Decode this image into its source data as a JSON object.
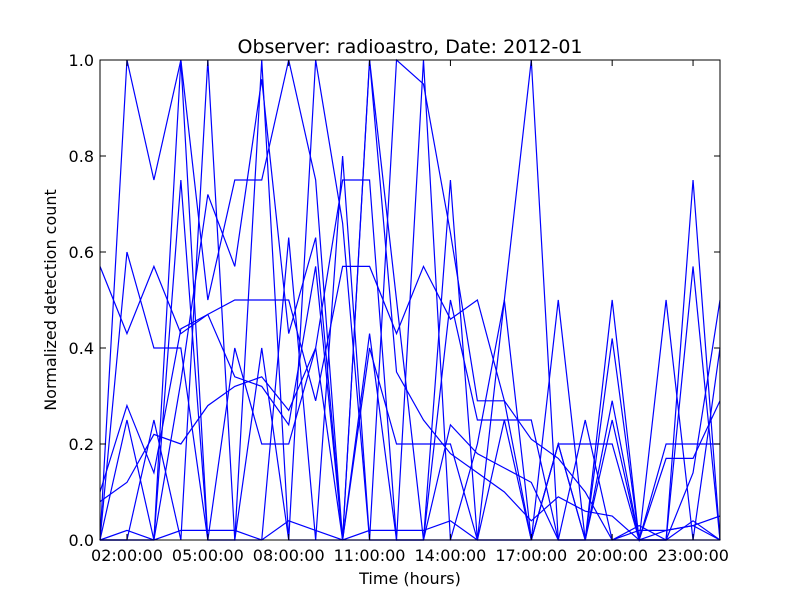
{
  "chart_data": {
    "type": "line",
    "title": "Observer: radioastro, Date: 2012-01",
    "xlabel": "Time (hours)",
    "ylabel": "Normalized detection count",
    "xlim": [
      1,
      24
    ],
    "ylim": [
      0,
      1
    ],
    "xtick_values": [
      2,
      5,
      8,
      11,
      14,
      17,
      20,
      23
    ],
    "xtick_labels": [
      "02:00:00",
      "05:00:00",
      "08:00:00",
      "11:00:00",
      "14:00:00",
      "17:00:00",
      "20:00:00",
      "23:00:00"
    ],
    "ytick_values": [
      0,
      0.2,
      0.4,
      0.6,
      0.8,
      1.0
    ],
    "ytick_labels": [
      "0.0",
      "0.2",
      "0.4",
      "0.6",
      "0.8",
      "1.0"
    ],
    "grid": false,
    "legend": "none",
    "line_color": "#0000ff",
    "x": [
      1,
      2,
      3,
      4,
      5,
      6,
      7,
      8,
      9,
      10,
      11,
      12,
      13,
      14,
      15,
      16,
      17,
      18,
      19,
      20,
      21,
      22,
      23,
      24
    ],
    "series": [
      {
        "values": [
          0.57,
          0.43,
          0.57,
          0.43,
          0.47,
          0.5,
          0.5,
          0.5,
          0.29,
          0.57,
          0.57,
          0.43,
          0.57,
          0.46,
          0.5,
          0.29,
          0.21,
          0.17,
          0.1,
          0.0,
          0.0,
          0.0,
          0.0,
          0.0
        ]
      },
      {
        "values": [
          0.0,
          0.6,
          0.4,
          0.4,
          0.0,
          0.4,
          0.2,
          0.2,
          0.4,
          0.0,
          0.4,
          0.2,
          0.2,
          0.2,
          0.0,
          0.0,
          0.0,
          0.2,
          0.2,
          0.2,
          0.0,
          0.2,
          0.2,
          0.2
        ]
      },
      {
        "values": [
          0.0,
          1.0,
          0.75,
          1.0,
          0.5,
          0.75,
          0.75,
          1.0,
          0.75,
          0.0,
          1.0,
          0.5,
          0.0,
          0.5,
          0.25,
          0.25,
          0.25,
          0.0,
          0.25,
          0.0,
          0.0,
          0.0,
          0.75,
          0.0
        ]
      },
      {
        "values": [
          0.0,
          0.02,
          0.0,
          0.02,
          0.02,
          0.02,
          0.0,
          0.04,
          0.02,
          0.0,
          0.02,
          0.02,
          0.02,
          0.04,
          0.0,
          0.0,
          0.0,
          0.0,
          0.0,
          0.0,
          0.02,
          0.02,
          0.03,
          0.05
        ]
      },
      {
        "values": [
          0.1,
          0.28,
          0.14,
          0.44,
          0.47,
          0.34,
          0.32,
          0.24,
          0.57,
          0.0,
          1.0,
          0.35,
          0.25,
          0.18,
          0.14,
          0.1,
          0.04,
          0.09,
          0.06,
          0.05,
          0.0,
          0.02,
          0.03,
          0.0
        ]
      },
      {
        "values": [
          0.08,
          0.12,
          0.22,
          0.2,
          0.28,
          0.32,
          0.34,
          0.27,
          0.4,
          0.75,
          0.75,
          0.0,
          0.0,
          0.24,
          0.18,
          0.15,
          0.12,
          0.0,
          0.0,
          0.0,
          0.03,
          0.0,
          0.04,
          0.0
        ]
      },
      {
        "values": [
          0.0,
          0.25,
          0.0,
          0.33,
          0.72,
          0.57,
          0.96,
          0.43,
          0.63,
          0.0,
          0.43,
          0.0,
          0.0,
          0.0,
          0.2,
          0.5,
          0.0,
          0.2,
          0.0,
          0.29,
          0.0,
          0.0,
          0.57,
          0.0
        ]
      },
      {
        "values": [
          0.0,
          0.0,
          0.25,
          0.0,
          1.0,
          0.0,
          0.0,
          0.63,
          0.0,
          0.8,
          0.0,
          1.0,
          0.95,
          0.64,
          0.29,
          0.29,
          0.0,
          0.5,
          0.0,
          0.5,
          0.0,
          0.5,
          0.0,
          0.4
        ]
      },
      {
        "values": [
          0.0,
          0.0,
          0.0,
          0.75,
          0.0,
          0.0,
          0.4,
          0.0,
          0.0,
          0.0,
          0.0,
          0.0,
          0.0,
          0.75,
          0.0,
          0.25,
          0.0,
          0.2,
          0.0,
          0.42,
          0.0,
          0.17,
          0.17,
          0.29
        ]
      },
      {
        "values": [
          0.0,
          0.0,
          0.0,
          1.0,
          0.0,
          0.0,
          1.0,
          0.0,
          1.0,
          0.66,
          0.0,
          0.0,
          1.0,
          0.0,
          0.0,
          0.5,
          1.0,
          0.0,
          0.0,
          0.25,
          0.0,
          0.0,
          0.14,
          0.5
        ]
      }
    ]
  }
}
